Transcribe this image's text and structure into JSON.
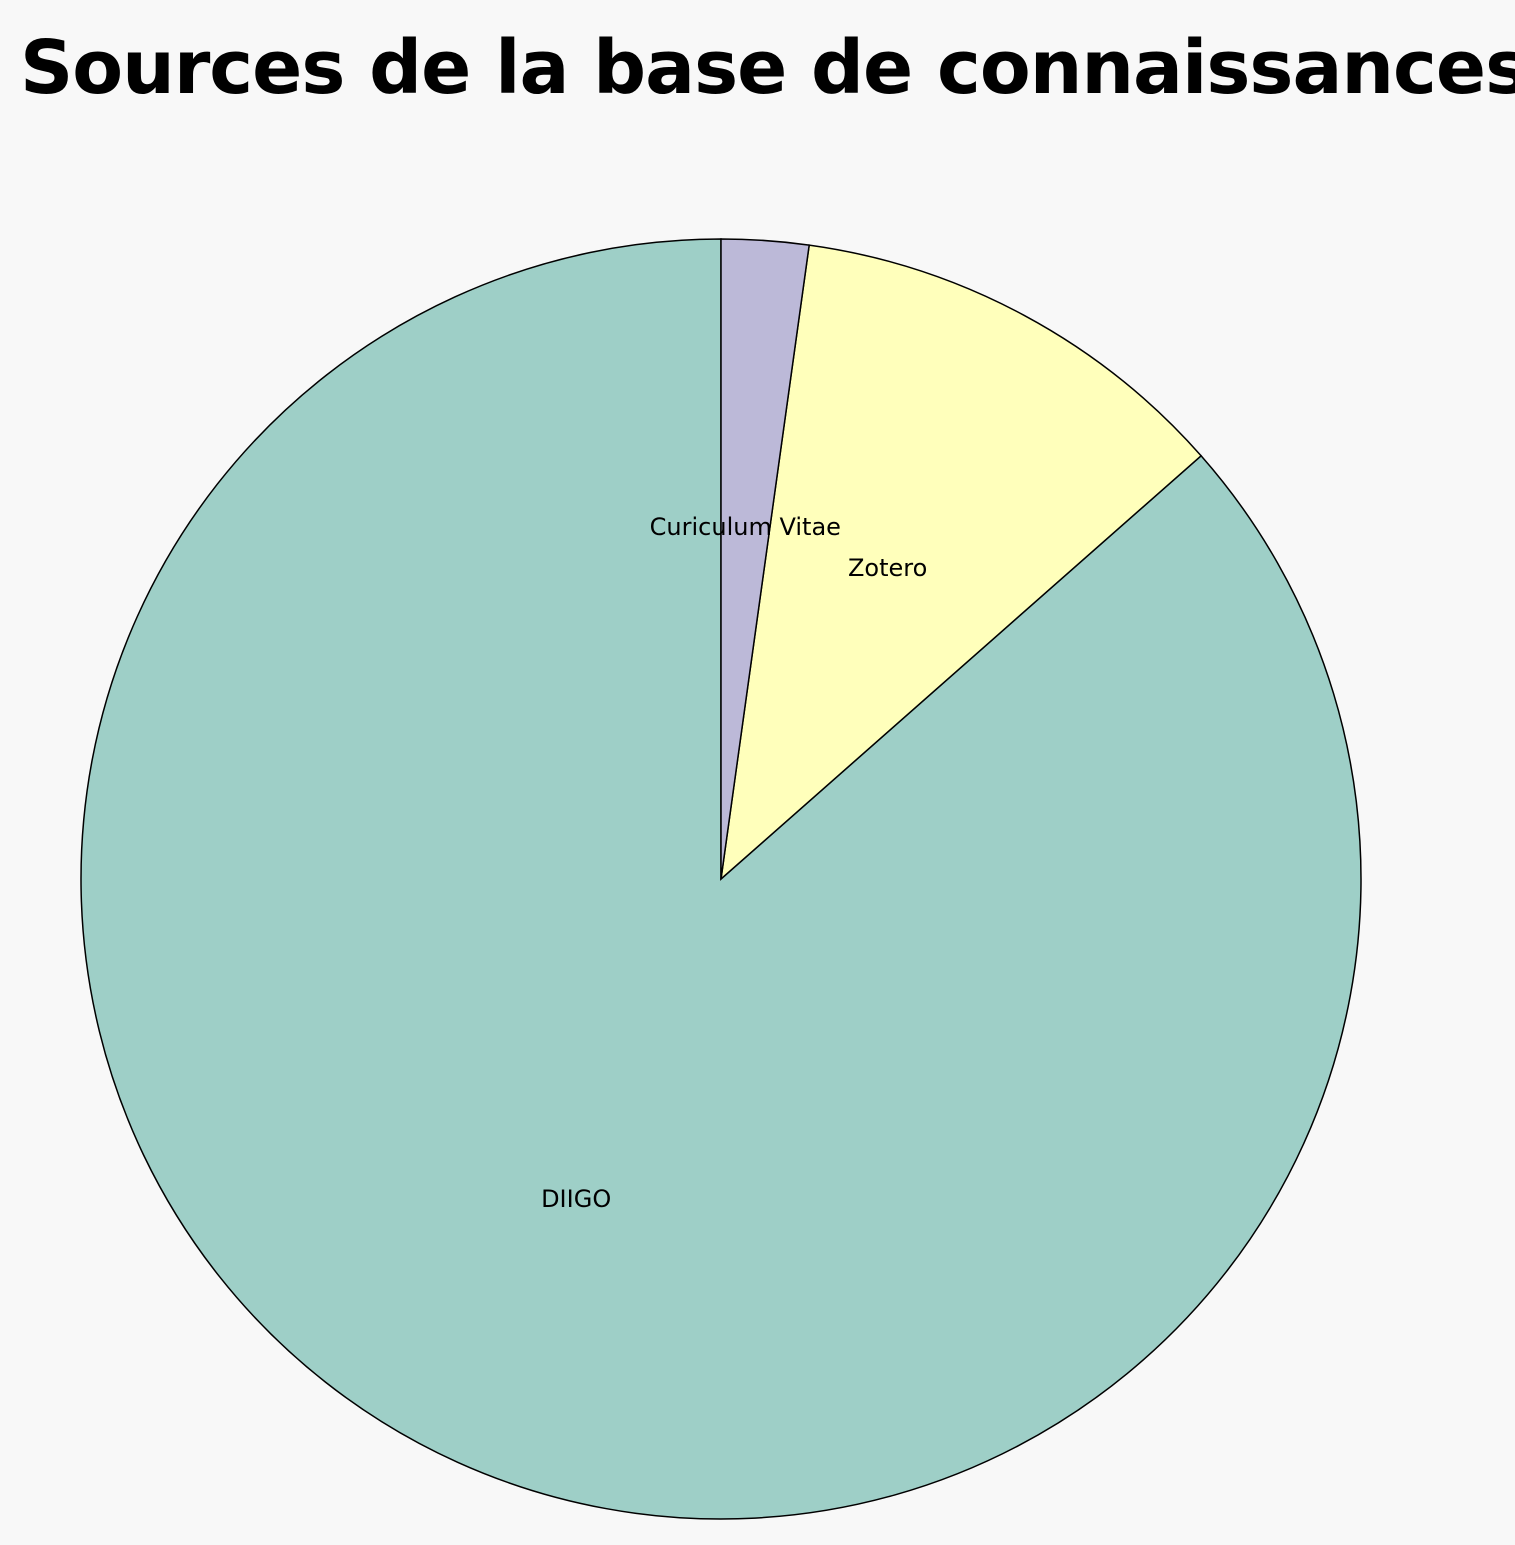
{
  "chart_data": {
    "type": "pie",
    "title": "Sources de la base de connaissances",
    "categories": [
      "DIIGO",
      "Zotero",
      "Curiculum Vitae"
    ],
    "values": [
      86.5,
      11.3,
      2.2
    ],
    "colors": [
      "#9ecfc7",
      "#ffffbb",
      "#bcb9d8"
    ],
    "start_angle": "top",
    "direction": "clockwise",
    "legend": "none"
  }
}
